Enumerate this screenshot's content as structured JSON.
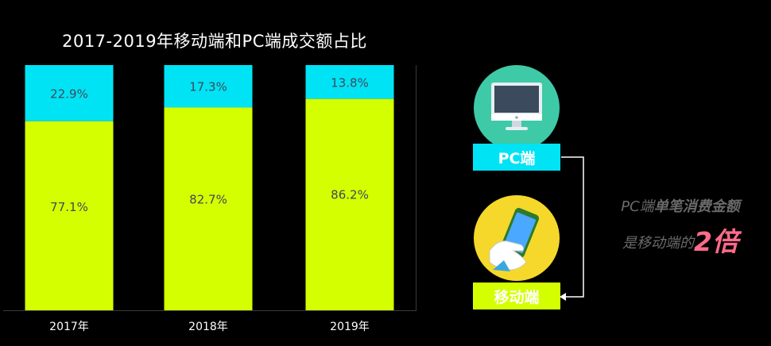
{
  "chart_title": "2017-2019年移动端和PC端成交额占比",
  "chart_data": {
    "type": "bar",
    "stacked": true,
    "categories": [
      "2017年",
      "2018年",
      "2019年"
    ],
    "series": [
      {
        "name": "PC端",
        "values": [
          22.9,
          17.3,
          13.8
        ],
        "labels": [
          "22.9%",
          "17.3%",
          "13.8%"
        ],
        "color": "#00e3f5"
      },
      {
        "name": "移动端",
        "values": [
          77.1,
          82.7,
          86.2
        ],
        "labels": [
          "77.1%",
          "82.7%",
          "86.2%"
        ],
        "color": "#d4ff00"
      }
    ],
    "ylim": [
      0,
      100
    ],
    "title": "2017-2019年移动端和PC端成交额占比"
  },
  "infographic": {
    "pc_icon": "desktop-monitor-icon",
    "pc_label": "PC端",
    "mobile_icon": "hand-holding-phone-icon",
    "mobile_label": "移动端",
    "note_part1": "PC端",
    "note_part2": "单笔消费金额",
    "note_part3": "是移动端的",
    "note_emphasis": "2倍",
    "accent_pc": "#00e3f5",
    "accent_mobile": "#d4ff00",
    "accent_emphasis": "#ff6b8a"
  }
}
